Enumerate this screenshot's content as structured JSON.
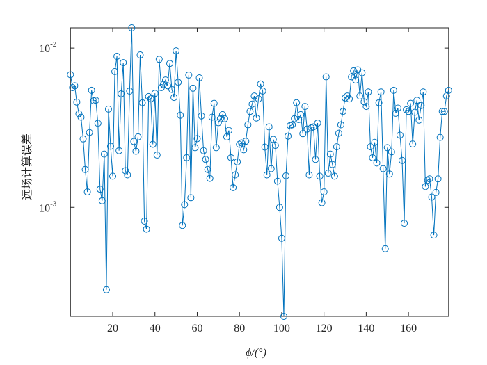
{
  "chart_data": {
    "type": "line",
    "xlabel": "ϕ/(°)",
    "ylabel": "远场计算误差",
    "yscale": "log",
    "xlim": [
      0,
      179
    ],
    "ylim": [
      0.000207,
      0.0134
    ],
    "xticks": [
      20,
      40,
      60,
      80,
      100,
      120,
      140,
      160
    ],
    "yticks": [
      {
        "value": 0.001,
        "label": "10",
        "exponent": "-3"
      },
      {
        "value": 0.01,
        "label": "10",
        "exponent": "-2"
      }
    ],
    "box": true,
    "x": [
      0,
      1,
      2,
      3,
      4,
      5,
      6,
      7,
      8,
      9,
      10,
      11,
      12,
      13,
      14,
      15,
      16,
      17,
      18,
      19,
      20,
      21,
      22,
      23,
      24,
      25,
      26,
      27,
      28,
      29,
      30,
      31,
      32,
      33,
      34,
      35,
      36,
      37,
      38,
      39,
      40,
      41,
      42,
      43,
      44,
      45,
      46,
      47,
      48,
      49,
      50,
      51,
      52,
      53,
      54,
      55,
      56,
      57,
      58,
      59,
      60,
      61,
      62,
      63,
      64,
      65,
      66,
      67,
      68,
      69,
      70,
      71,
      72,
      73,
      74,
      75,
      76,
      77,
      78,
      79,
      80,
      81,
      82,
      83,
      84,
      85,
      86,
      87,
      88,
      89,
      90,
      91,
      92,
      93,
      94,
      95,
      96,
      97,
      98,
      99,
      100,
      101,
      102,
      103,
      104,
      105,
      106,
      107,
      108,
      109,
      110,
      111,
      112,
      113,
      114,
      115,
      116,
      117,
      118,
      119,
      120,
      121,
      122,
      123,
      124,
      125,
      126,
      127,
      128,
      129,
      130,
      131,
      132,
      133,
      134,
      135,
      136,
      137,
      138,
      139,
      140,
      141,
      142,
      143,
      144,
      145,
      146,
      147,
      148,
      149,
      150,
      151,
      152,
      153,
      154,
      155,
      156,
      157,
      158,
      159,
      160,
      161,
      162,
      163,
      164,
      165,
      166,
      167,
      168,
      169,
      170,
      171,
      172,
      173,
      174,
      175,
      176,
      177,
      178,
      179
    ],
    "series": [
      {
        "color": "#0072bd",
        "marker": "circle",
        "values": [
          0.0068,
          0.00565,
          0.0058,
          0.00458,
          0.00387,
          0.00368,
          0.00269,
          0.00173,
          0.00125,
          0.00295,
          0.00543,
          0.00467,
          0.0047,
          0.00337,
          0.0013,
          0.0011,
          0.00216,
          0.000304,
          0.00414,
          0.00242,
          0.00157,
          0.00712,
          0.00887,
          0.00227,
          0.00516,
          0.0081,
          0.0017,
          0.0016,
          0.00537,
          0.0134,
          0.00259,
          0.00225,
          0.00277,
          0.00905,
          0.00454,
          0.00082,
          0.00073,
          0.00496,
          0.0048,
          0.00249,
          0.0052,
          0.00213,
          0.0085,
          0.00565,
          0.0059,
          0.0063,
          0.0058,
          0.008,
          0.0055,
          0.0049,
          0.0096,
          0.0061,
          0.00379,
          0.00077,
          0.00104,
          0.00205,
          0.00677,
          0.00115,
          0.0056,
          0.00237,
          0.0027,
          0.0065,
          0.00375,
          0.00227,
          0.002,
          0.00173,
          0.00152,
          0.00368,
          0.0045,
          0.00237,
          0.0034,
          0.0036,
          0.00382,
          0.0036,
          0.00277,
          0.00304,
          0.00205,
          0.00133,
          0.0016,
          0.00193,
          0.00249,
          0.00254,
          0.0023,
          0.0026,
          0.0033,
          0.004,
          0.00445,
          0.005,
          0.00364,
          0.0048,
          0.00595,
          0.00537,
          0.00239,
          0.0016,
          0.0032,
          0.00175,
          0.00267,
          0.00245,
          0.00146,
          0.001,
          0.00064,
          0.000207,
          0.00158,
          0.0028,
          0.00326,
          0.0033,
          0.0036,
          0.00454,
          0.00356,
          0.00382,
          0.0029,
          0.0043,
          0.0031,
          0.0016,
          0.00316,
          0.0032,
          0.002,
          0.00338,
          0.00157,
          0.00107,
          0.00125,
          0.0066,
          0.00164,
          0.00216,
          0.00186,
          0.00157,
          0.0024,
          0.00292,
          0.0033,
          0.004,
          0.00486,
          0.005,
          0.0048,
          0.0066,
          0.0072,
          0.0063,
          0.0073,
          0.005,
          0.007,
          0.0046,
          0.0043,
          0.0053,
          0.0024,
          0.00205,
          0.00256,
          0.0019,
          0.00454,
          0.0053,
          0.00175,
          0.00055,
          0.00237,
          0.00162,
          0.00223,
          0.00543,
          0.0039,
          0.0042,
          0.00284,
          0.00197,
          0.000795,
          0.0041,
          0.004,
          0.0045,
          0.0025,
          0.00395,
          0.0047,
          0.00353,
          0.00436,
          0.0053,
          0.00135,
          0.00148,
          0.00151,
          0.00116,
          0.00067,
          0.00124,
          0.00151,
          0.00275,
          0.004,
          0.004,
          0.005,
          0.00543
        ]
      }
    ]
  }
}
